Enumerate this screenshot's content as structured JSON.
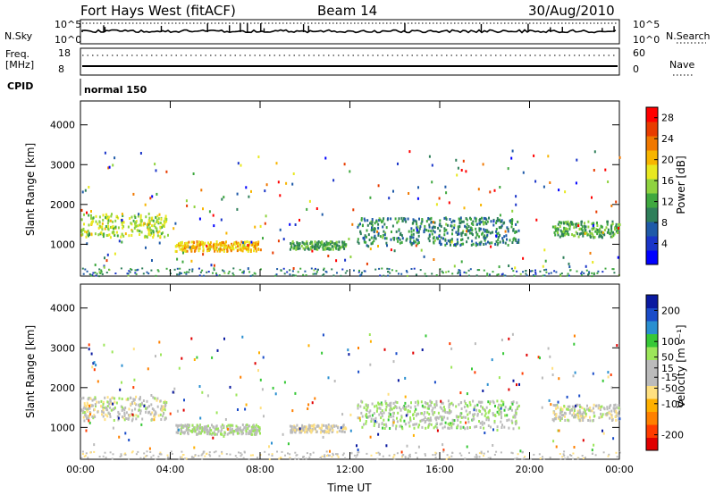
{
  "header": {
    "station": "Fort Hays West (fitACF)",
    "beam": "Beam 14",
    "date": "30/Aug/2010"
  },
  "noise_panel": {
    "left_label": "N.Sky",
    "right_label": "N.Search",
    "left_ticks": [
      "10^5",
      "10^0"
    ],
    "right_ticks": [
      "10^5",
      "10^0"
    ]
  },
  "freq_panel": {
    "left_label_1": "Freq.",
    "left_label_2": "[MHz]",
    "right_label": "Nave",
    "left_ticks": [
      "18",
      "8"
    ],
    "right_ticks": [
      "60",
      "0"
    ]
  },
  "cpid": {
    "label": "CPID",
    "mode": "normal 150"
  },
  "chart_data": [
    {
      "type": "heatmap",
      "name": "power",
      "ylabel": "Slant Range [km]",
      "xlabel": "",
      "x_ticks": [
        "00:00",
        "04:00",
        "08:00",
        "12:00",
        "16:00",
        "20:00",
        "00:00"
      ],
      "y_ticks": [
        "1000",
        "2000",
        "3000",
        "4000"
      ],
      "ylim": [
        200,
        4600
      ],
      "xlim_hours": [
        0,
        24
      ],
      "colorbar": {
        "label": "Power [dB]",
        "ticks": [
          "28",
          "24",
          "20",
          "16",
          "12",
          "8",
          "4"
        ],
        "range": [
          0,
          30
        ],
        "colors": [
          "#0000ff",
          "#1a35c8",
          "#1f5aa8",
          "#2f7f5a",
          "#3fa83f",
          "#8fd33f",
          "#e8e820",
          "#f7b500",
          "#f07800",
          "#e83c00",
          "#ff0000"
        ]
      },
      "echo_regions": [
        {
          "t0": 0.0,
          "t1": 3.8,
          "r0": 1200,
          "r1": 1800,
          "level": 16
        },
        {
          "t0": 4.2,
          "t1": 8.0,
          "r0": 850,
          "r1": 1100,
          "level": 20
        },
        {
          "t0": 9.3,
          "t1": 11.8,
          "r0": 900,
          "r1": 1100,
          "level": 12
        },
        {
          "t0": 12.3,
          "t1": 19.5,
          "r0": 1000,
          "r1": 1700,
          "level": 10
        },
        {
          "t0": 21.0,
          "t1": 24.0,
          "r0": 1200,
          "r1": 1600,
          "level": 12
        }
      ]
    },
    {
      "type": "heatmap",
      "name": "velocity",
      "ylabel": "Slant Range [km]",
      "xlabel": "Time UT",
      "x_ticks": [
        "00:00",
        "04:00",
        "08:00",
        "12:00",
        "16:00",
        "20:00",
        "00:00"
      ],
      "y_ticks": [
        "1000",
        "2000",
        "3000",
        "4000"
      ],
      "ylim": [
        200,
        4600
      ],
      "xlim_hours": [
        0,
        24
      ],
      "colorbar": {
        "label": "Velocity [m s⁻¹]",
        "ticks": [
          "200",
          "100",
          "50",
          "15",
          "-15",
          "-50",
          "-100",
          "-200"
        ],
        "range": [
          -250,
          250
        ],
        "colors": [
          "#e00000",
          "#ff3c00",
          "#ff8000",
          "#ffb000",
          "#ffe080",
          "#bbbbbb",
          "#bbbbbb",
          "#9ce65a",
          "#37c837",
          "#2a8fd0",
          "#1a4cc8",
          "#0a1aa0"
        ]
      },
      "echo_regions": [
        {
          "t0": 0.0,
          "t1": 3.8,
          "r0": 1200,
          "r1": 1800,
          "level": 0
        },
        {
          "t0": 4.2,
          "t1": 8.0,
          "r0": 850,
          "r1": 1100,
          "level": 20
        },
        {
          "t0": 9.3,
          "t1": 11.8,
          "r0": 900,
          "r1": 1100,
          "level": -20
        },
        {
          "t0": 12.3,
          "t1": 19.5,
          "r0": 1000,
          "r1": 1700,
          "level": 30
        },
        {
          "t0": 21.0,
          "t1": 24.0,
          "r0": 1200,
          "r1": 1600,
          "level": 0
        }
      ]
    }
  ]
}
